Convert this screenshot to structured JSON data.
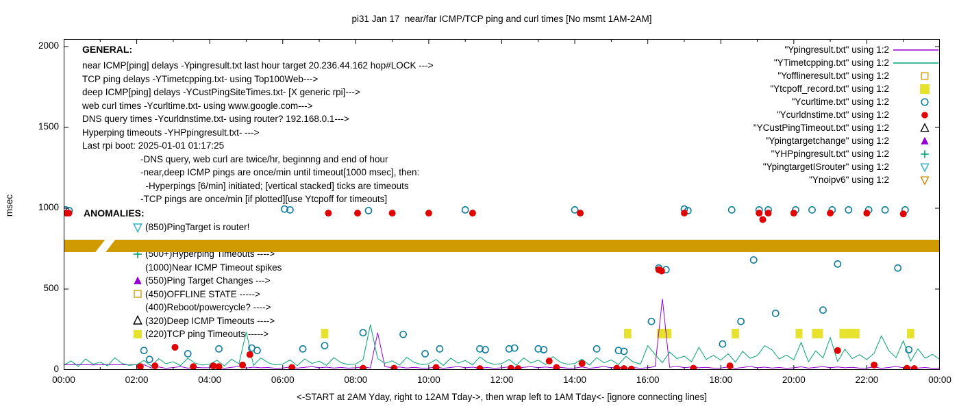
{
  "title": "pi31 Jan 17  near/far ICMP/TCP ping and curl times [No msmt 1AM-2AM]",
  "y_axis": {
    "label": "msec",
    "ticks": [
      0,
      500,
      1000,
      1500,
      2000
    ]
  },
  "x_axis": {
    "label": "<-START at 2AM Yday, right to 12AM Tday->, then wrap left to 1AM Tday<- [ignore connecting lines]",
    "ticks": [
      "00:00",
      "02:00",
      "04:00",
      "06:00",
      "08:00",
      "10:00",
      "12:00",
      "14:00",
      "16:00",
      "18:00",
      "20:00",
      "22:00",
      "00:00"
    ]
  },
  "legend": [
    {
      "label": "\"Ypingresult.txt\" using 1:2",
      "symbol": "line",
      "color": "#9400d3"
    },
    {
      "label": "\"YTimetcpping.txt\" using 1:2",
      "symbol": "line",
      "color": "#00a273"
    },
    {
      "label": "\"Yofflineresult.txt\" using 1:2",
      "symbol": "square-open",
      "color": "#d0a000"
    },
    {
      "label": "\"Ytcpoff_record.txt\" using 1:2",
      "symbol": "square-filled",
      "color": "#e6e22e"
    },
    {
      "label": "\"Ycurltime.txt\" using 1:2",
      "symbol": "circle-open",
      "color": "#0e7c9e"
    },
    {
      "label": "\"Ycurldnstime.txt\" using 1:2",
      "symbol": "circle-filled",
      "color": "#e00000"
    },
    {
      "label": "\"YCustPingTimeout.txt\" using 1:2",
      "symbol": "triangle-open",
      "color": "#000000"
    },
    {
      "label": "\"Ypingtargetchange\" using 1:2",
      "symbol": "triangle-filled",
      "color": "#9400d3"
    },
    {
      "label": "\"YHPpingresult.txt\" using 1:2",
      "symbol": "plus",
      "color": "#00a273"
    },
    {
      "label": "\"YpingtargetISrouter\" using 1:2",
      "symbol": "triangle-down-open",
      "color": "#2ab0c5"
    },
    {
      "label": "\"Ynoipv6\" using 1:2",
      "symbol": "triangle-down-open",
      "color": "#c88a00"
    }
  ],
  "general": {
    "heading": "GENERAL:",
    "lines": [
      "near ICMP[ping] delays -Ypingresult.txt last hour target 20.236.44.162 hop#LOCK --->",
      "TCP ping delays -YTimetcpping.txt- using Top100Web--->",
      "deep ICMP[ping] delays -YCustPingSiteTimes.txt- [X generic rpi]--->",
      "web curl times -Ycurltime.txt- using www.google.com--->",
      "DNS query times -Ycurldnstime.txt- using router? 192.168.0.1--->",
      "Hyperping timeouts -YHPpingresult.txt- --->",
      "Last rpi boot: 2025-01-01 01:17:25"
    ],
    "notes": [
      "-DNS query, web curl are twice/hr, beginnng and end of hour",
      "-near,deep ICMP pings are once/min until timeout[1000 msec], then:",
      "  -Hyperpings [6/min] initiated; [vertical stacked] ticks are timeouts",
      "-TCP pings are once/min [if plotted][use Ytcpoff for timeouts]"
    ]
  },
  "anomalies": {
    "heading": "ANOMALIES:",
    "items": [
      {
        "icon": "triangle-down-open",
        "color": "#2ab0c5",
        "text": "(850)PingTarget is router!"
      },
      {
        "icon": "none",
        "color": "",
        "text": ""
      },
      {
        "icon": "plus",
        "color": "#00a273",
        "text": "(500+)Hyperping Timeouts ---->"
      },
      {
        "icon": "none",
        "color": "",
        "text": "(1000)Near ICMP Timeout spikes"
      },
      {
        "icon": "triangle-filled",
        "color": "#9400d3",
        "text": "(550)Ping Target Changes --->"
      },
      {
        "icon": "square-open",
        "color": "#d0a000",
        "text": "(450)OFFLINE STATE ----->"
      },
      {
        "icon": "none",
        "color": "",
        "text": "(400)Reboot/powercycle? ---->"
      },
      {
        "icon": "triangle-open",
        "color": "#000000",
        "text": "(320)Deep ICMP Timeouts ---->"
      },
      {
        "icon": "square-filled",
        "color": "#e6e22e",
        "text": "(220)TCP ping Timeouts ----->"
      }
    ]
  },
  "chart_data": {
    "type": "line",
    "title": "pi31 Jan 17  near/far ICMP/TCP ping and curl times [No msmt 1AM-2AM]",
    "xlabel": "<-START at 2AM Yday, right to 12AM Tday->, then wrap left to 1AM Tday<- [ignore connecting lines]",
    "ylabel": "msec",
    "x_unit": "hours",
    "xlim": [
      0,
      24
    ],
    "ylim": [
      0,
      2000
    ],
    "grid": false,
    "legend_position": "top-right",
    "series": [
      {
        "name": "Ypingresult.txt",
        "kind": "line",
        "color": "#9400d3",
        "x_start": 0,
        "x_step": 0.2,
        "y": [
          32,
          32,
          33,
          32,
          31,
          32,
          33,
          32,
          32,
          31,
          32,
          32,
          12,
          18,
          10,
          15,
          20,
          11,
          16,
          13,
          14,
          19,
          10,
          16,
          21,
          12,
          17,
          13,
          15,
          10,
          12,
          18,
          11,
          16,
          20,
          13,
          17,
          12,
          15,
          11,
          13,
          19,
          12,
          230,
          20,
          14,
          18,
          12,
          16,
          11,
          12,
          18,
          10,
          15,
          21,
          13,
          17,
          12,
          15,
          10,
          13,
          19,
          11,
          16,
          20,
          14,
          18,
          13,
          16,
          11,
          12,
          18,
          10,
          15,
          21,
          13,
          17,
          12,
          15,
          10,
          14,
          20,
          440,
          16,
          22,
          14,
          18,
          13,
          16,
          11,
          12,
          18,
          10,
          15,
          21,
          13,
          17,
          12,
          15,
          10,
          13,
          19,
          11,
          16,
          20,
          14,
          18,
          13,
          16,
          11,
          12,
          18,
          10,
          15,
          21,
          13,
          17,
          12,
          15,
          10,
          12
        ]
      },
      {
        "name": "YTimetcpping.txt",
        "kind": "line",
        "color": "#00a273",
        "x_start": 0,
        "x_step": 0.2,
        "y": [
          30,
          55,
          22,
          68,
          35,
          48,
          25,
          75,
          40,
          28,
          33,
          58,
          24,
          70,
          38,
          50,
          27,
          72,
          42,
          30,
          35,
          60,
          25,
          66,
          38,
          235,
          28,
          74,
          44,
          31,
          36,
          62,
          26,
          68,
          40,
          54,
          29,
          76,
          45,
          32,
          37,
          63,
          280,
          70,
          41,
          56,
          30,
          78,
          46,
          33,
          38,
          64,
          28,
          72,
          42,
          58,
          31,
          80,
          47,
          34,
          39,
          65,
          29,
          74,
          43,
          60,
          32,
          82,
          48,
          35,
          40,
          66,
          30,
          76,
          44,
          62,
          33,
          84,
          49,
          36,
          150,
          95,
          45,
          110,
          70,
          85,
          50,
          140,
          65,
          90,
          60,
          100,
          48,
          115,
          72,
          88,
          150,
          125,
          68,
          92,
          62,
          170,
          50,
          118,
          74,
          200,
          52,
          128,
          70,
          94,
          64,
          104,
          210,
          120,
          76,
          180,
          54,
          130,
          72,
          96,
          65
        ]
      },
      {
        "name": "Ynoipv6",
        "kind": "band",
        "color": "#d09b00",
        "y_center": 767,
        "y_half": 38,
        "segments": [
          [
            0,
            1.0
          ],
          [
            1.28,
            24
          ]
        ]
      },
      {
        "name": "Ytcpoff_record.txt",
        "kind": "squares",
        "color": "#e6e22e",
        "y": 225,
        "segments": [
          [
            7.05,
            7.25
          ],
          [
            15.35,
            15.55
          ],
          [
            16.25,
            16.65
          ],
          [
            18.3,
            18.5
          ],
          [
            20.05,
            20.22
          ],
          [
            20.5,
            20.8
          ],
          [
            21.25,
            21.8
          ],
          [
            23.1,
            23.3
          ]
        ]
      },
      {
        "name": "Ycurltime.txt",
        "kind": "scatter",
        "marker": "circle-open",
        "color": "#0e7c9e",
        "points": [
          [
            0.05,
            990
          ],
          [
            0.15,
            985
          ],
          [
            2.2,
            120
          ],
          [
            2.35,
            65
          ],
          [
            3.4,
            100
          ],
          [
            4.25,
            130
          ],
          [
            5.15,
            135
          ],
          [
            5.3,
            120
          ],
          [
            6.05,
            995
          ],
          [
            6.2,
            990
          ],
          [
            6.55,
            130
          ],
          [
            7.15,
            150
          ],
          [
            8.2,
            230
          ],
          [
            8.35,
            985
          ],
          [
            9.3,
            220
          ],
          [
            9.9,
            100
          ],
          [
            10.3,
            130
          ],
          [
            11.0,
            990
          ],
          [
            11.4,
            130
          ],
          [
            11.55,
            125
          ],
          [
            12.2,
            130
          ],
          [
            12.35,
            135
          ],
          [
            13.0,
            130
          ],
          [
            13.15,
            125
          ],
          [
            14.0,
            990
          ],
          [
            14.6,
            130
          ],
          [
            15.2,
            120
          ],
          [
            15.35,
            115
          ],
          [
            16.1,
            300
          ],
          [
            16.3,
            630
          ],
          [
            16.5,
            620
          ],
          [
            17.0,
            995
          ],
          [
            17.1,
            985
          ],
          [
            18.05,
            160
          ],
          [
            18.3,
            990
          ],
          [
            18.55,
            300
          ],
          [
            18.9,
            680
          ],
          [
            19.05,
            990
          ],
          [
            19.3,
            990
          ],
          [
            19.5,
            350
          ],
          [
            20.05,
            990
          ],
          [
            20.5,
            990
          ],
          [
            20.8,
            370
          ],
          [
            21.05,
            990
          ],
          [
            21.2,
            655
          ],
          [
            21.5,
            990
          ],
          [
            22.05,
            990
          ],
          [
            22.5,
            990
          ],
          [
            22.85,
            630
          ],
          [
            23.05,
            990
          ],
          [
            23.15,
            125
          ]
        ]
      },
      {
        "name": "Ycurldnstime.txt",
        "kind": "scatter",
        "marker": "circle-filled",
        "color": "#e00000",
        "points": [
          [
            0.07,
            970
          ],
          [
            0.14,
            970
          ],
          [
            2.1,
            20
          ],
          [
            2.5,
            25
          ],
          [
            3.05,
            140
          ],
          [
            3.55,
            20
          ],
          [
            4.1,
            25
          ],
          [
            4.25,
            20
          ],
          [
            4.9,
            30
          ],
          [
            5.1,
            95
          ],
          [
            6.25,
            15
          ],
          [
            7.25,
            970
          ],
          [
            8.05,
            970
          ],
          [
            8.2,
            10
          ],
          [
            9.0,
            970
          ],
          [
            9.05,
            10
          ],
          [
            10.0,
            970
          ],
          [
            10.2,
            15
          ],
          [
            11.2,
            970
          ],
          [
            11.4,
            8
          ],
          [
            12.25,
            10
          ],
          [
            12.45,
            8
          ],
          [
            13.3,
            55
          ],
          [
            13.5,
            15
          ],
          [
            14.15,
            970
          ],
          [
            14.2,
            40
          ],
          [
            15.15,
            10
          ],
          [
            15.35,
            8
          ],
          [
            15.55,
            5
          ],
          [
            16.3,
            620
          ],
          [
            16.38,
            612
          ],
          [
            17.0,
            970
          ],
          [
            17.25,
            10
          ],
          [
            18.25,
            25
          ],
          [
            19.05,
            970
          ],
          [
            19.15,
            930
          ],
          [
            19.3,
            970
          ],
          [
            20.0,
            970
          ],
          [
            21.0,
            970
          ],
          [
            21.2,
            120
          ],
          [
            22.0,
            970
          ],
          [
            22.2,
            30
          ],
          [
            23.0,
            965
          ],
          [
            23.1,
            10
          ],
          [
            23.3,
            8
          ]
        ]
      }
    ]
  }
}
